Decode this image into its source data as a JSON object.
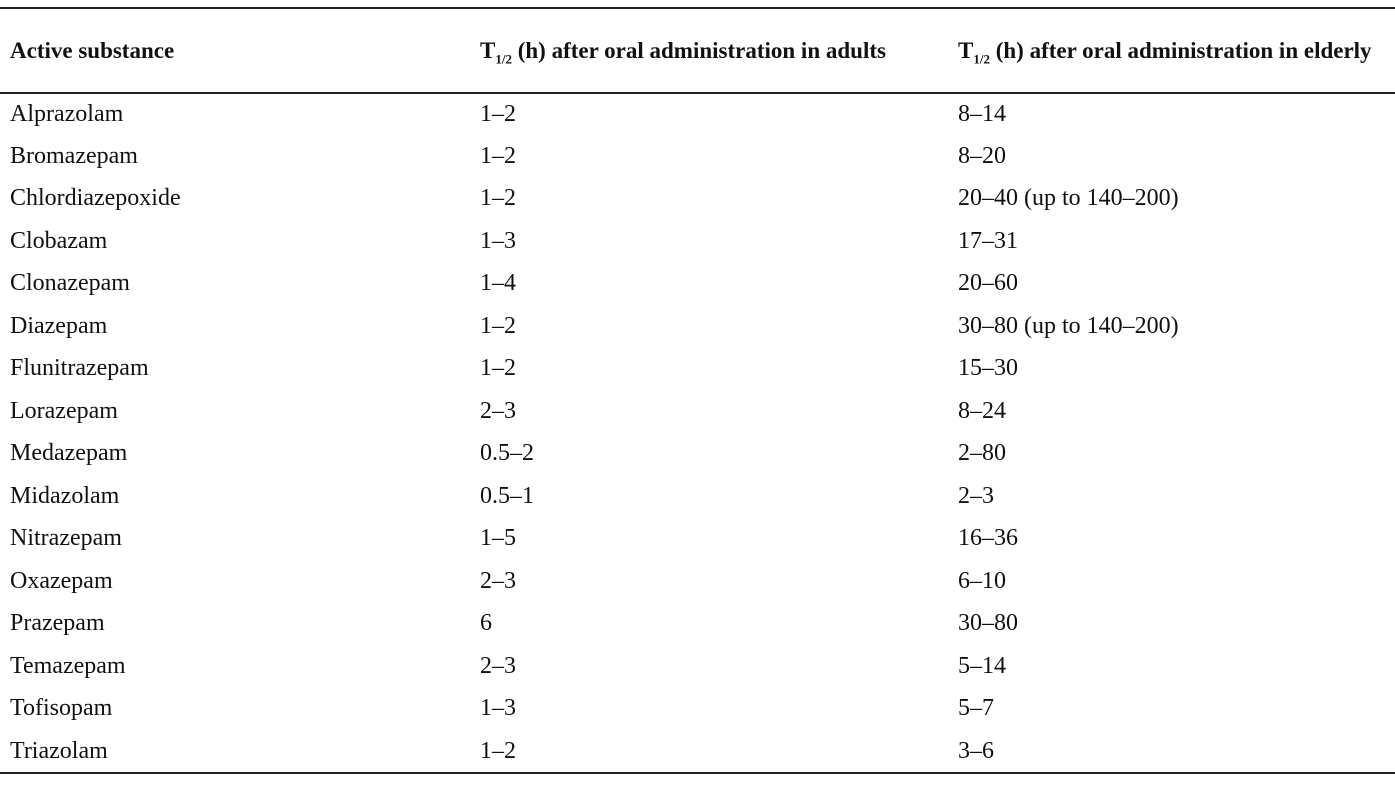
{
  "table": {
    "headers": {
      "col1": "Active substance",
      "col2": {
        "symbol": "T",
        "subscript": "1/2",
        "rest": " (h) after oral administration in adults"
      },
      "col3": {
        "symbol": "T",
        "subscript": "1/2",
        "rest": " (h) after oral administration in elderly"
      }
    },
    "rows": [
      [
        "Alprazolam",
        "1–2",
        "8–14"
      ],
      [
        "Bromazepam",
        "1–2",
        "8–20"
      ],
      [
        "Chlordiazepoxide",
        "1–2",
        "20–40 (up to 140–200)"
      ],
      [
        "Clobazam",
        "1–3",
        "17–31"
      ],
      [
        "Clonazepam",
        "1–4",
        "20–60"
      ],
      [
        "Diazepam",
        "1–2",
        "30–80 (up to 140–200)"
      ],
      [
        "Flunitrazepam",
        "1–2",
        "15–30"
      ],
      [
        "Lorazepam",
        "2–3",
        "8–24"
      ],
      [
        "Medazepam",
        "0.5–2",
        "2–80"
      ],
      [
        "Midazolam",
        "0.5–1",
        "2–3"
      ],
      [
        "Nitrazepam",
        "1–5",
        "16–36"
      ],
      [
        "Oxazepam",
        "2–3",
        "6–10"
      ],
      [
        "Prazepam",
        "6",
        "30–80"
      ],
      [
        "Temazepam",
        "2–3",
        "5–14"
      ],
      [
        "Tofisopam",
        "1–3",
        "5–7"
      ],
      [
        "Triazolam",
        "1–2",
        "3–6"
      ]
    ]
  }
}
